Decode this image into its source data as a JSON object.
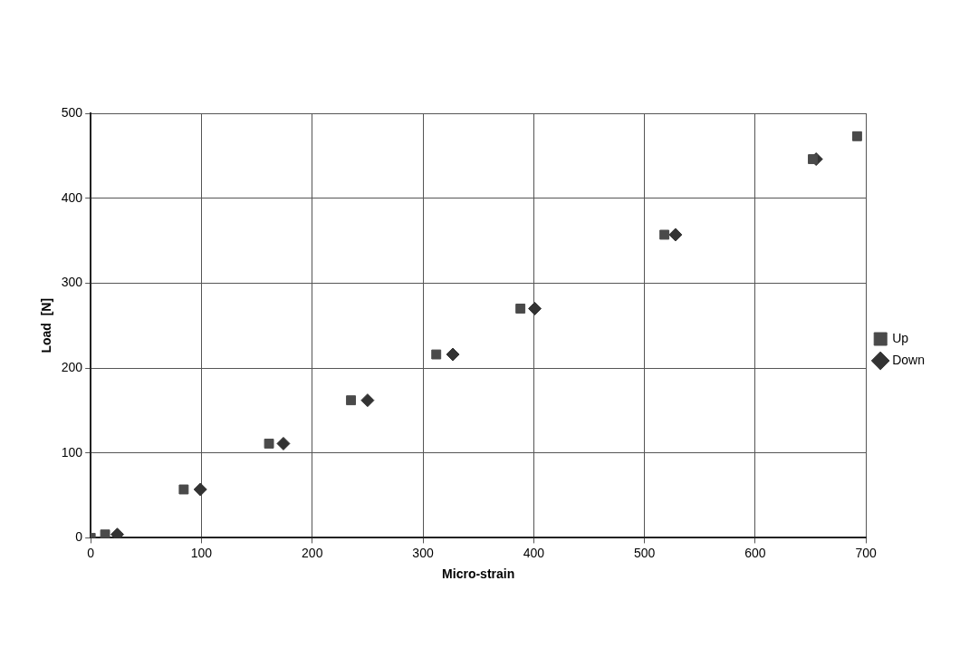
{
  "chart_data": {
    "type": "scatter",
    "xlabel": "Micro-strain",
    "ylabel": "Load  [N]",
    "xlim": [
      0,
      700
    ],
    "ylim": [
      0,
      500
    ],
    "xticks": [
      0,
      100,
      200,
      300,
      400,
      500,
      600,
      700
    ],
    "yticks": [
      0,
      100,
      200,
      300,
      400,
      500
    ],
    "grid": true,
    "legend": "right",
    "series": [
      {
        "name": "Down",
        "color": "#333333",
        "marker": "diamond",
        "x": [
          24,
          99,
          174,
          250,
          327,
          401,
          528,
          655
        ],
        "values": [
          4,
          57,
          111,
          162,
          216,
          270,
          357,
          446
        ]
      },
      {
        "name": "Up",
        "color": "#4a4a4a",
        "marker": "square",
        "x": [
          0,
          13,
          84,
          161,
          235,
          312,
          388,
          518,
          652,
          692
        ],
        "values": [
          0,
          4,
          57,
          111,
          162,
          216,
          270,
          357,
          446,
          473
        ]
      }
    ]
  }
}
